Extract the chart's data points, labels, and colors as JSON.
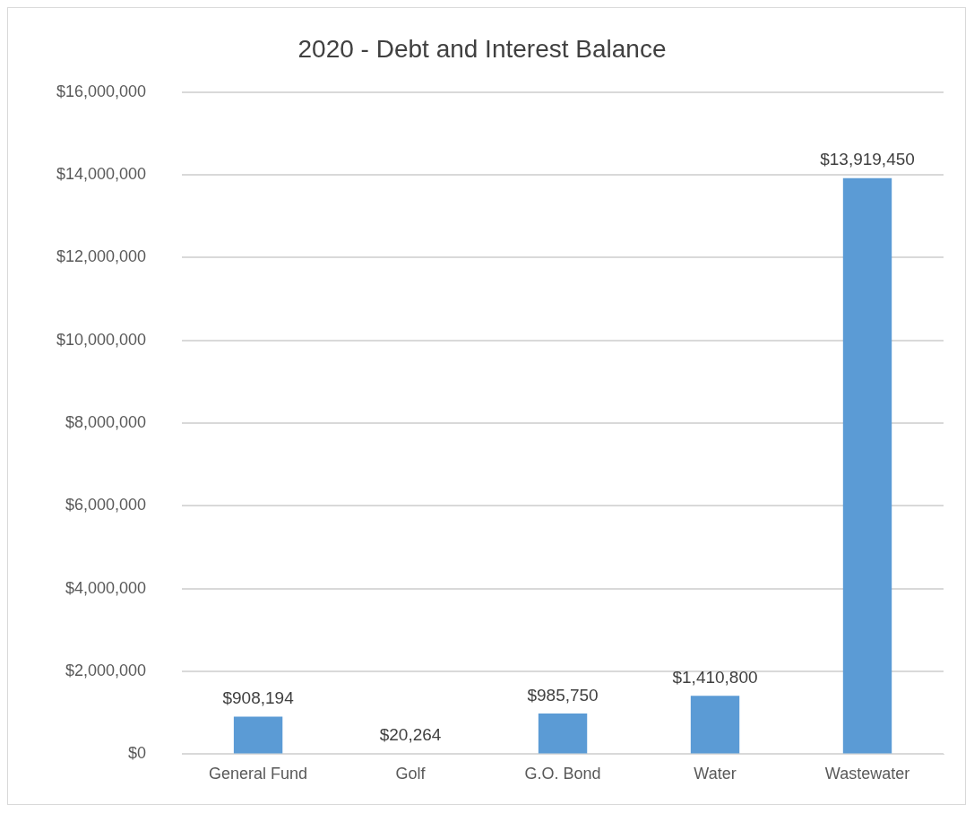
{
  "chart_data": {
    "type": "bar",
    "title": "2020 - Debt and Interest Balance",
    "categories": [
      "General Fund",
      "Golf",
      "G.O. Bond",
      "Water",
      "Wastewater"
    ],
    "values": [
      908194,
      20264,
      985750,
      1410800,
      13919450
    ],
    "value_labels": [
      "$908,194",
      "$20,264",
      "$985,750",
      "$1,410,800",
      "$13,919,450"
    ],
    "color": "#5b9bd5",
    "ylim": [
      0,
      16000000
    ],
    "yticks": [
      {
        "value": 0,
        "label": "$0"
      },
      {
        "value": 2000000,
        "label": "$2,000,000"
      },
      {
        "value": 4000000,
        "label": "$4,000,000"
      },
      {
        "value": 6000000,
        "label": "$6,000,000"
      },
      {
        "value": 8000000,
        "label": "$8,000,000"
      },
      {
        "value": 10000000,
        "label": "$10,000,000"
      },
      {
        "value": 12000000,
        "label": "$12,000,000"
      },
      {
        "value": 14000000,
        "label": "$14,000,000"
      },
      {
        "value": 16000000,
        "label": "$16,000,000"
      }
    ],
    "grid": "y"
  }
}
